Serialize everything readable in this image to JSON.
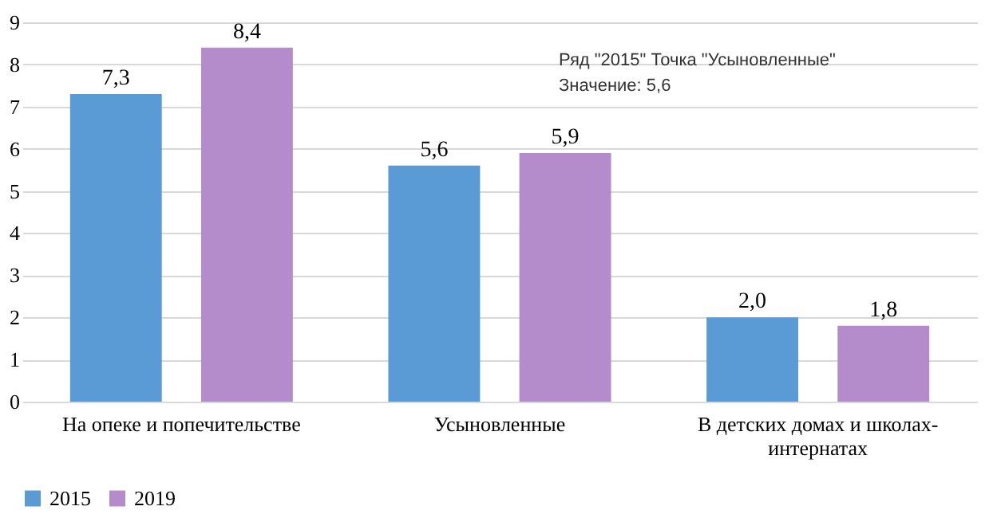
{
  "chart_data": {
    "type": "bar",
    "categories": [
      "На опеке и попечительстве",
      "Усыновленные",
      "В детских домах и школах-интернатах"
    ],
    "series": [
      {
        "name": "2015",
        "color": "#5b9bd5",
        "values": [
          7.3,
          5.6,
          2.0
        ],
        "value_labels": [
          "7,3",
          "5,6",
          "2,0"
        ]
      },
      {
        "name": "2019",
        "color": "#b48ccc",
        "values": [
          8.4,
          5.9,
          1.8
        ],
        "value_labels": [
          "8,4",
          "5,9",
          "1,8"
        ]
      }
    ],
    "ylim": [
      0,
      9
    ],
    "yticks": [
      0,
      1,
      2,
      3,
      4,
      5,
      6,
      7,
      8,
      9
    ],
    "grid": "y",
    "legend": "bottom",
    "annotations": [
      "Ряд \"2015\" Точка \"Усыновленные\"",
      "Значение: 5,6"
    ]
  }
}
